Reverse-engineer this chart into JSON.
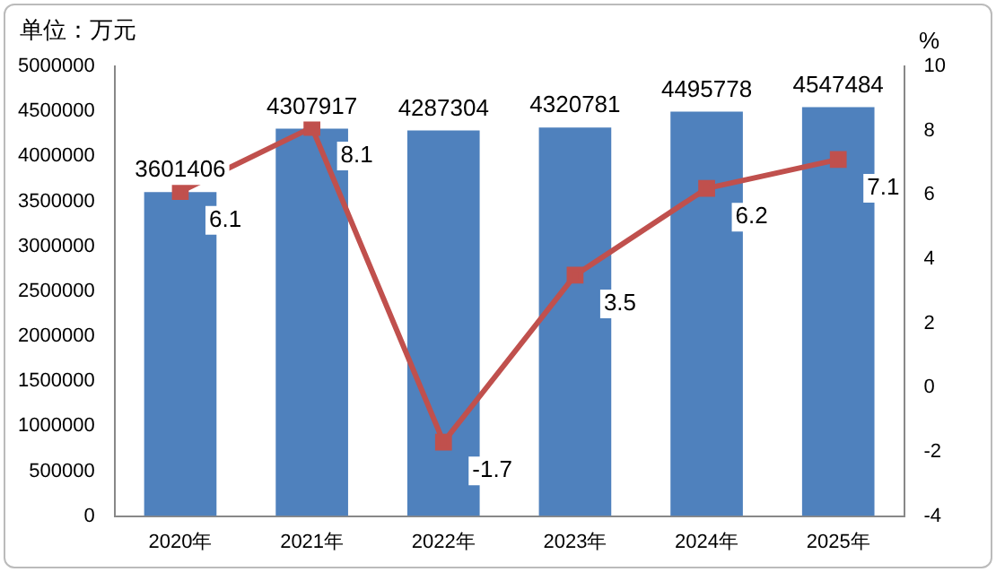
{
  "chart_data": {
    "type": "bar",
    "ylabel": "单位：万元",
    "y2label": "%",
    "categories": [
      "2020年",
      "2021年",
      "2022年",
      "2023年",
      "2024年",
      "2025年"
    ],
    "series": [
      {
        "color": "#4f81bd",
        "values": [
          3601406,
          4307917,
          4287304,
          4320781,
          4495778,
          4547484
        ]
      },
      {
        "type": "line",
        "axis": "y2",
        "color": "#c0504d",
        "marker": "square",
        "values": [
          6.1,
          8.1,
          -1.7,
          3.5,
          6.2,
          7.1
        ]
      }
    ],
    "ylim": [
      0,
      5000000
    ],
    "yticks": [
      0,
      500000,
      1000000,
      1500000,
      2000000,
      2500000,
      3000000,
      3500000,
      4000000,
      4500000,
      5000000
    ],
    "y2lim": [
      -4,
      10
    ],
    "y2ticks": [
      -4,
      -2,
      0,
      2,
      4,
      6,
      8,
      10
    ],
    "grid": false,
    "legend": false,
    "data_labels": true
  }
}
